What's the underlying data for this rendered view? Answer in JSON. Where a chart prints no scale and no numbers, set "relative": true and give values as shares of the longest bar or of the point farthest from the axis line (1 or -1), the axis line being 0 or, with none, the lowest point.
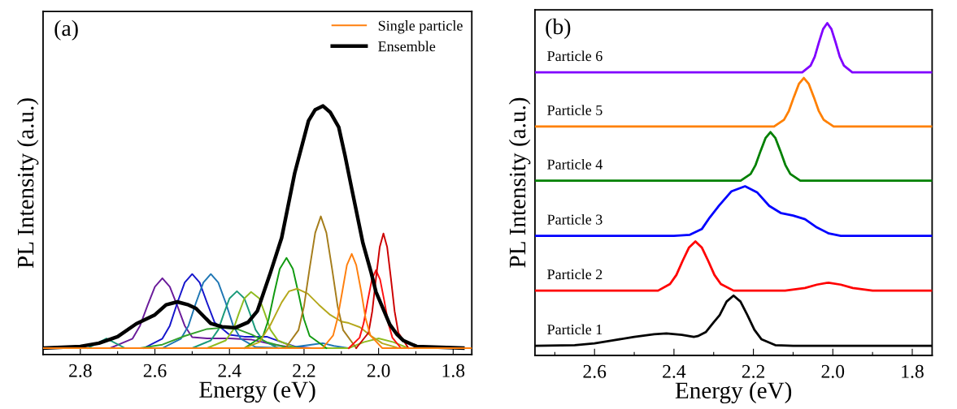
{
  "chart_data": [
    {
      "type": "line",
      "relative": true,
      "xlabel": "Energy (eV)",
      "ylabel": "PL Intensity (a.u.)",
      "annotations": [
        "(a)"
      ],
      "legend": "top right",
      "tick_labels": "x",
      "xlim": [
        2.9,
        1.75
      ],
      "xticks": [
        2.8,
        {
          "value": 2.7,
          "label": null
        },
        2.6,
        {
          "value": 2.5,
          "label": null
        },
        2.4,
        {
          "value": 2.3,
          "label": null
        },
        2.2,
        {
          "value": 2.1,
          "label": null
        },
        {
          "value": 2.0,
          "label": "2.0"
        },
        {
          "value": 1.9,
          "label": null
        },
        1.8
      ],
      "series": [
        {
          "color": "#6a1b9a",
          "x": [
            2.72,
            2.66,
            2.64,
            2.62,
            2.6,
            2.58,
            2.56,
            2.54,
            2.52,
            2.5,
            2.46,
            2.4,
            2.34,
            2.28,
            2.22
          ],
          "values": [
            0.026,
            0.064,
            0.116,
            0.197,
            0.273,
            0.307,
            0.273,
            0.197,
            0.116,
            0.07,
            0.065,
            0.065,
            0.06,
            0.04,
            0.026
          ]
        },
        {
          "color": "#1515cc",
          "x": [
            2.63,
            2.58,
            2.56,
            2.54,
            2.52,
            2.5,
            2.48,
            2.46,
            2.44,
            2.4,
            2.36,
            2.3,
            2.26,
            2.22,
            2.18
          ],
          "values": [
            0.026,
            0.064,
            0.116,
            0.208,
            0.29,
            0.324,
            0.29,
            0.208,
            0.13,
            0.08,
            0.072,
            0.072,
            0.05,
            0.03,
            0.026
          ]
        },
        {
          "color": "#1f77b4",
          "x": [
            2.58,
            2.53,
            2.51,
            2.49,
            2.47,
            2.45,
            2.43,
            2.41,
            2.39,
            2.37,
            2.33,
            2.25,
            2.18,
            2.15,
            2.12,
            2.08
          ],
          "values": [
            0.026,
            0.064,
            0.116,
            0.208,
            0.29,
            0.324,
            0.29,
            0.208,
            0.116,
            0.064,
            0.03,
            0.026,
            0.04,
            0.046,
            0.035,
            0.026
          ]
        },
        {
          "color": "#1a9a7a",
          "x": [
            2.78,
            2.73,
            2.68,
            2.5,
            2.45,
            2.43,
            2.415,
            2.4,
            2.38,
            2.36,
            2.345,
            2.33,
            2.31,
            2.27
          ],
          "values": [
            0.026,
            0.065,
            0.026,
            0.026,
            0.057,
            0.1,
            0.165,
            0.226,
            0.255,
            0.226,
            0.165,
            0.1,
            0.057,
            0.026
          ]
        },
        {
          "color": "#8fbc1f",
          "x": [
            2.46,
            2.41,
            2.39,
            2.375,
            2.36,
            2.342,
            2.32,
            2.305,
            2.29,
            2.27,
            2.22,
            2.08,
            2.04,
            2.0,
            1.96,
            1.92
          ],
          "values": [
            0.026,
            0.057,
            0.1,
            0.165,
            0.226,
            0.252,
            0.226,
            0.165,
            0.1,
            0.057,
            0.026,
            0.026,
            0.05,
            0.065,
            0.05,
            0.026
          ]
        },
        {
          "color": "#33a02c",
          "x": [
            2.64,
            2.58,
            2.52,
            2.46,
            2.42,
            2.38,
            2.34,
            2.3,
            2.25,
            2.2
          ],
          "values": [
            0.026,
            0.04,
            0.075,
            0.103,
            0.108,
            0.103,
            0.08,
            0.05,
            0.03,
            0.026
          ]
        },
        {
          "color": "#109a10",
          "x": [
            2.36,
            2.31,
            2.295,
            2.28,
            2.265,
            2.247,
            2.23,
            2.215,
            2.2,
            2.185,
            2.14
          ],
          "values": [
            0.026,
            0.075,
            0.142,
            0.247,
            0.345,
            0.389,
            0.345,
            0.247,
            0.142,
            0.075,
            0.026
          ]
        },
        {
          "color": "#b5a81c",
          "x": [
            2.36,
            2.32,
            2.29,
            2.26,
            2.24,
            2.218,
            2.19,
            2.16,
            2.13,
            2.1,
            2.08,
            2.05,
            2.02,
            1.99,
            1.95,
            1.92
          ],
          "values": [
            0.026,
            0.05,
            0.12,
            0.21,
            0.255,
            0.265,
            0.245,
            0.2,
            0.16,
            0.133,
            0.127,
            0.11,
            0.075,
            0.045,
            0.028,
            0.026
          ]
        },
        {
          "color": "#a57d1b",
          "x": [
            2.25,
            2.215,
            2.2,
            2.185,
            2.17,
            2.155,
            2.14,
            2.125,
            2.11,
            2.095,
            2.06
          ],
          "values": [
            0.026,
            0.098,
            0.195,
            0.347,
            0.49,
            0.556,
            0.49,
            0.347,
            0.195,
            0.098,
            0.026
          ]
        },
        {
          "color": "#ff1010",
          "x": [
            2.08,
            2.051,
            2.04,
            2.029,
            2.018,
            2.007,
            1.996,
            1.985,
            1.974,
            1.963,
            1.94
          ],
          "values": [
            0.026,
            0.068,
            0.127,
            0.218,
            0.302,
            0.34,
            0.302,
            0.218,
            0.127,
            0.068,
            0.026
          ]
        },
        {
          "color": "#cc0000",
          "x": [
            2.06,
            2.027,
            2.017,
            2.007,
            1.997,
            1.987,
            1.977,
            1.967,
            1.957,
            1.947,
            1.92
          ],
          "values": [
            0.026,
            0.088,
            0.174,
            0.307,
            0.432,
            0.487,
            0.432,
            0.307,
            0.174,
            0.088,
            0.026
          ]
        },
        {
          "name": "Single particle",
          "color": "#ff7f0e",
          "x": [
            2.9,
            2.15,
            2.122,
            2.11,
            2.097,
            2.085,
            2.072,
            2.06,
            2.047,
            2.035,
            2.022,
            1.99,
            1.75
          ],
          "values": [
            0.026,
            0.026,
            0.077,
            0.147,
            0.257,
            0.36,
            0.405,
            0.36,
            0.257,
            0.147,
            0.077,
            0.026,
            0.026
          ]
        },
        {
          "name": "Ensemble",
          "color": "#000000",
          "x": [
            2.9,
            2.8,
            2.75,
            2.7,
            2.65,
            2.6,
            2.57,
            2.54,
            2.51,
            2.49,
            2.45,
            2.42,
            2.384,
            2.35,
            2.325,
            2.29,
            2.26,
            2.225,
            2.188,
            2.17,
            2.149,
            2.13,
            2.107,
            2.09,
            2.072,
            2.042,
            2.02,
            2.007,
            1.97,
            1.95,
            1.933,
            1.898,
            1.774
          ],
          "values": [
            0.026,
            0.033,
            0.046,
            0.072,
            0.124,
            0.16,
            0.2,
            0.212,
            0.2,
            0.186,
            0.125,
            0.112,
            0.108,
            0.13,
            0.176,
            0.33,
            0.47,
            0.73,
            0.94,
            0.985,
            1.0,
            0.975,
            0.915,
            0.8,
            0.667,
            0.448,
            0.33,
            0.252,
            0.121,
            0.08,
            0.056,
            0.033,
            0.026
          ]
        }
      ]
    },
    {
      "type": "line",
      "relative": true,
      "xlabel": "Energy (eV)",
      "ylabel": "PL Intensity (a.u.)",
      "annotations": [
        "(b)"
      ],
      "tick_labels": "x",
      "xlim": [
        2.75,
        1.75
      ],
      "xticks": [
        {
          "value": 2.7,
          "label": null
        },
        2.6,
        {
          "value": 2.5,
          "label": null
        },
        2.4,
        {
          "value": 2.3,
          "label": null
        },
        2.2,
        {
          "value": 2.1,
          "label": null
        },
        {
          "value": 2.0,
          "label": "2.0"
        },
        {
          "value": 1.9,
          "label": null
        },
        1.8
      ],
      "series": [
        {
          "name": "Particle 1",
          "color": "#000000",
          "x": [
            2.75,
            2.65,
            2.6,
            2.55,
            2.5,
            2.45,
            2.419,
            2.38,
            2.35,
            2.34,
            2.32,
            2.3,
            2.285,
            2.2675,
            2.25,
            2.2325,
            2.215,
            2.1975,
            2.18,
            2.145,
            2.1,
            1.75
          ],
          "values": [
            0.029,
            0.031,
            0.036,
            0.046,
            0.056,
            0.064,
            0.066,
            0.062,
            0.056,
            0.058,
            0.07,
            0.1,
            0.121,
            0.162,
            0.18,
            0.162,
            0.121,
            0.077,
            0.049,
            0.031,
            0.029,
            0.029
          ]
        },
        {
          "name": "Particle 2",
          "color": "#ff0000",
          "x": [
            2.75,
            2.44,
            2.41,
            2.394,
            2.378,
            2.362,
            2.346,
            2.33,
            2.314,
            2.298,
            2.282,
            2.25,
            2.12,
            2.07,
            2.04,
            2.011,
            1.98,
            1.95,
            1.9,
            1.75
          ],
          "values": [
            0.195,
            0.195,
            0.215,
            0.242,
            0.285,
            0.325,
            0.343,
            0.325,
            0.285,
            0.242,
            0.215,
            0.195,
            0.195,
            0.203,
            0.213,
            0.219,
            0.213,
            0.203,
            0.195,
            0.195
          ]
        },
        {
          "name": "Particle 3",
          "color": "#0000ff",
          "x": [
            2.75,
            2.4,
            2.36,
            2.33,
            2.31,
            2.287,
            2.255,
            2.221,
            2.19,
            2.16,
            2.13,
            2.1,
            2.07,
            2.04,
            2.01,
            1.98,
            1.75
          ],
          "values": [
            0.36,
            0.36,
            0.363,
            0.38,
            0.415,
            0.45,
            0.494,
            0.509,
            0.49,
            0.45,
            0.428,
            0.421,
            0.41,
            0.385,
            0.367,
            0.36,
            0.36
          ]
        },
        {
          "name": "Particle 4",
          "color": "#008000",
          "x": [
            2.75,
            2.232,
            2.207,
            2.1945,
            2.182,
            2.1695,
            2.157,
            2.1445,
            2.132,
            2.1195,
            2.107,
            2.082,
            1.75
          ],
          "values": [
            0.526,
            0.526,
            0.546,
            0.573,
            0.615,
            0.654,
            0.672,
            0.654,
            0.615,
            0.573,
            0.546,
            0.526,
            0.526
          ]
        },
        {
          "name": "Particle 5",
          "color": "#ff8000",
          "x": [
            2.75,
            2.148,
            2.123,
            2.1105,
            2.098,
            2.0855,
            2.073,
            2.0605,
            2.048,
            2.0355,
            2.023,
            1.998,
            1.75
          ],
          "values": [
            0.689,
            0.689,
            0.709,
            0.736,
            0.778,
            0.817,
            0.835,
            0.817,
            0.778,
            0.736,
            0.709,
            0.689,
            0.689
          ]
        },
        {
          "name": "Particle 6",
          "color": "#8000ff",
          "x": [
            2.75,
            2.077,
            2.056,
            2.0455,
            2.035,
            2.0245,
            2.014,
            2.0035,
            1.993,
            1.9825,
            1.972,
            1.951,
            1.75
          ],
          "values": [
            0.852,
            0.852,
            0.872,
            0.899,
            0.942,
            0.982,
            1.0,
            0.982,
            0.942,
            0.899,
            0.872,
            0.852,
            0.852
          ]
        }
      ]
    }
  ]
}
